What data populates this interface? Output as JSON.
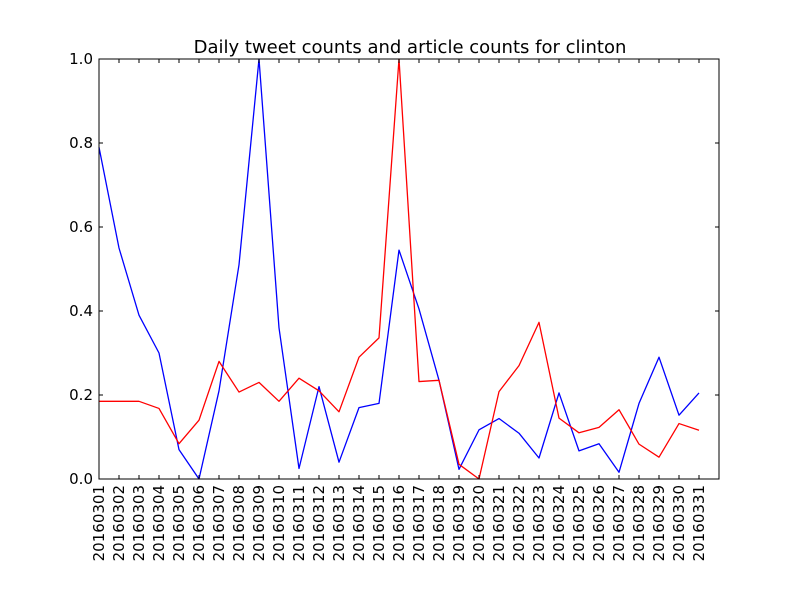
{
  "chart_data": {
    "type": "line",
    "title": "Daily tweet counts and article counts for clinton",
    "xlabel": "",
    "ylabel": "",
    "ylim": [
      0,
      1.0
    ],
    "y_ticks": [
      "0.0",
      "0.2",
      "0.4",
      "0.6",
      "0.8",
      "1.0"
    ],
    "y_tick_values": [
      0,
      0.2,
      0.4,
      0.6,
      0.8,
      1.0
    ],
    "grid": false,
    "categories": [
      "20160301",
      "20160302",
      "20160303",
      "20160304",
      "20160305",
      "20160306",
      "20160307",
      "20160308",
      "20160309",
      "20160310",
      "20160311",
      "20160312",
      "20160313",
      "20160314",
      "20160315",
      "20160316",
      "20160317",
      "20160318",
      "20160319",
      "20160320",
      "20160321",
      "20160322",
      "20160323",
      "20160324",
      "20160325",
      "20160326",
      "20160327",
      "20160328",
      "20160329",
      "20160330",
      "20160331"
    ],
    "series": [
      {
        "color": "#0000ff",
        "values": [
          0.79,
          0.55,
          0.39,
          0.3,
          0.07,
          0.0,
          0.21,
          0.51,
          1.0,
          0.36,
          0.025,
          0.22,
          0.04,
          0.17,
          0.18,
          0.545,
          0.405,
          0.235,
          0.023,
          0.117,
          0.144,
          0.109,
          0.05,
          0.205,
          0.067,
          0.084,
          0.016,
          0.18,
          0.29,
          0.152,
          0.205
        ]
      },
      {
        "color": "#ff0000",
        "values": [
          0.185,
          0.185,
          0.185,
          0.168,
          0.084,
          0.14,
          0.28,
          0.207,
          0.23,
          0.185,
          0.24,
          0.21,
          0.16,
          0.29,
          0.336,
          1.0,
          0.232,
          0.235,
          0.035,
          0.0,
          0.208,
          0.27,
          0.373,
          0.145,
          0.11,
          0.123,
          0.165,
          0.083,
          0.052,
          0.132,
          0.116
        ]
      }
    ]
  }
}
